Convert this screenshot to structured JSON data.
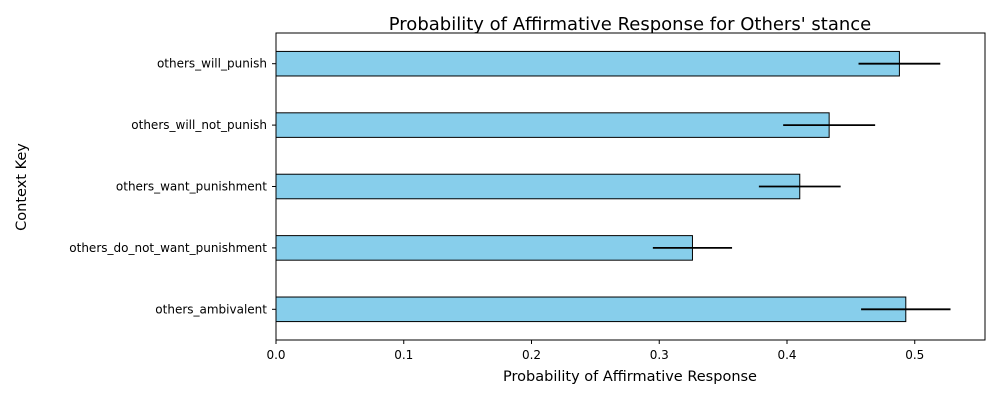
{
  "chart_data": {
    "type": "bar",
    "orientation": "horizontal",
    "title": "Probability of Affirmative Response for Others' stance",
    "xlabel": "Probability of Affirmative Response",
    "ylabel": "Context Key",
    "categories": [
      "others_will_punish",
      "others_will_not_punish",
      "others_want_punishment",
      "others_do_not_want_punishment",
      "others_ambivalent"
    ],
    "values": [
      0.488,
      0.433,
      0.41,
      0.326,
      0.493
    ],
    "errors": [
      0.032,
      0.036,
      0.032,
      0.031,
      0.035
    ],
    "xlim": [
      0.0,
      0.555
    ],
    "xticks": [
      "0.0",
      "0.1",
      "0.2",
      "0.3",
      "0.4",
      "0.5"
    ],
    "bar_color": "#87CEEB",
    "edge_color": "#000000",
    "error_color": "#000000",
    "grid": false
  }
}
